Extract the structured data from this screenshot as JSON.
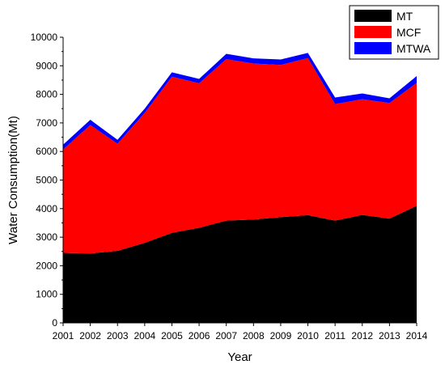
{
  "chart_data": {
    "type": "area",
    "stacked": true,
    "title": "",
    "xlabel": "Year",
    "ylabel": "Water Consumption(Mt)",
    "x": [
      "2001",
      "2002",
      "2003",
      "2004",
      "2005",
      "2006",
      "2007",
      "2008",
      "2009",
      "2010",
      "2011",
      "2012",
      "2013",
      "2014"
    ],
    "ylim": [
      0,
      10000
    ],
    "yticks": [
      "0",
      "1000",
      "2000",
      "3000",
      "4000",
      "5000",
      "6000",
      "7000",
      "8000",
      "9000",
      "10000"
    ],
    "grid": false,
    "legend_position": "top-right",
    "series": [
      {
        "name": "MT",
        "color": "#000000",
        "values": [
          2450,
          2430,
          2520,
          2800,
          3150,
          3330,
          3580,
          3620,
          3700,
          3770,
          3580,
          3780,
          3650,
          4100
        ]
      },
      {
        "name": "MCF",
        "color": "#ff0000",
        "values": [
          3620,
          4500,
          3750,
          4550,
          5470,
          5060,
          5650,
          5460,
          5330,
          5500,
          4080,
          4050,
          4050,
          4300
        ]
      },
      {
        "name": "MTWA",
        "color": "#0000ff",
        "values": [
          170,
          180,
          140,
          150,
          150,
          150,
          190,
          180,
          190,
          180,
          230,
          200,
          160,
          240
        ]
      }
    ]
  }
}
